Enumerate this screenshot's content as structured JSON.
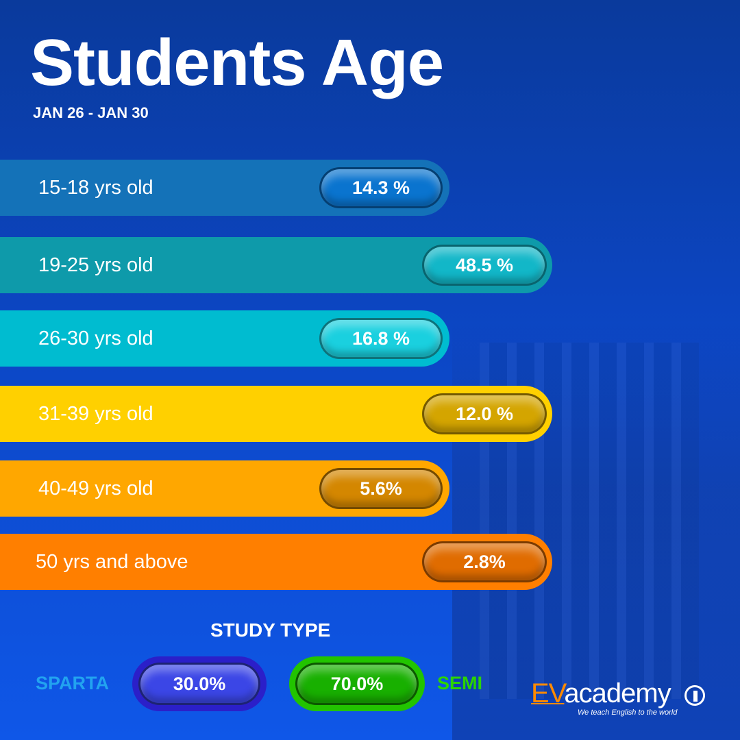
{
  "title": "Students Age",
  "subtitle": "JAN 26 - JAN 30",
  "chart_data": {
    "type": "bar",
    "categories": [
      "15-18 yrs old",
      "19-25 yrs old",
      "26-30 yrs old",
      "31-39 yrs old",
      "40-49 yrs old",
      "50 yrs and above"
    ],
    "values": [
      14.3,
      48.5,
      16.8,
      12.0,
      5.6,
      2.8
    ],
    "value_labels": [
      "14.3 %",
      "48.5 %",
      "16.8 %",
      "12.0 %",
      "5.6%",
      "2.8%"
    ],
    "colors": [
      "#1472b8",
      "#0e9aaa",
      "#00bcd0",
      "#ffd000",
      "#ffa700",
      "#ff7f00"
    ],
    "pill_colors": [
      "#0a74cf",
      "#12b7c8",
      "#1ad0df",
      "#d4a500",
      "#d48700",
      "#e06c00"
    ]
  },
  "study_type": {
    "title": "STUDY TYPE",
    "items": [
      {
        "name": "SPARTA",
        "value": 30.0,
        "label": "30.0%",
        "color": "#3b46e6",
        "ring": "#2b1fc9",
        "text_color": "#22a3f0"
      },
      {
        "name": "SEMI",
        "value": 70.0,
        "label": "70.0%",
        "color": "#18b000",
        "ring": "#22c400",
        "text_color": "#2bd400"
      }
    ]
  },
  "logo": {
    "ev": "EV",
    "academy": "academy",
    "tagline": "We teach English to the world",
    "icon": "globe-icon"
  }
}
